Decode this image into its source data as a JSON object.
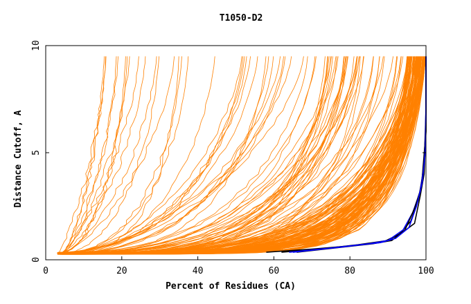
{
  "chart_data": {
    "type": "line",
    "title": "T1050-D2",
    "xlabel": "Percent of Residues (CA)",
    "ylabel": "Distance Cutoff, A",
    "xlim": [
      0,
      100
    ],
    "ylim": [
      0,
      10
    ],
    "xticks": [
      0,
      20,
      40,
      60,
      80,
      100
    ],
    "yticks": [
      0,
      5,
      10
    ],
    "grid": false,
    "colors": {
      "models": "#ff8000",
      "highlight_black": "#000000",
      "highlight_blue": "#0000ff"
    },
    "highlighted_series": [
      {
        "color": "#000000",
        "x": [
          58,
          70,
          80,
          89,
          93,
          96,
          98,
          99,
          100,
          100
        ],
        "y": [
          0.35,
          0.5,
          0.65,
          0.85,
          1.2,
          1.8,
          2.8,
          3.8,
          6.0,
          9.5
        ]
      },
      {
        "color": "#000000",
        "x": [
          62,
          72,
          82,
          90,
          94,
          97,
          98.5,
          99.5,
          100,
          100
        ],
        "y": [
          0.35,
          0.5,
          0.7,
          0.9,
          1.3,
          1.7,
          3.0,
          4.0,
          6.0,
          9.5
        ]
      },
      {
        "color": "#0000ff",
        "x": [
          64,
          75,
          85,
          90,
          94,
          96.5,
          98.5,
          99.5,
          100,
          100
        ],
        "y": [
          0.35,
          0.55,
          0.75,
          0.9,
          1.4,
          2.2,
          3.2,
          4.5,
          6.5,
          9.5
        ]
      },
      {
        "color": "#000000",
        "x": [
          66,
          76,
          86,
          91,
          94.5,
          97,
          98.8,
          99.6,
          100,
          100
        ],
        "y": [
          0.35,
          0.55,
          0.75,
          0.9,
          1.4,
          2.4,
          3.4,
          4.8,
          7.0,
          9.5
        ]
      },
      {
        "color": "#0000ff",
        "x": [
          65,
          78,
          88,
          92,
          95.5,
          97.5,
          99,
          99.8,
          100,
          100
        ],
        "y": [
          0.35,
          0.6,
          0.8,
          1.0,
          1.5,
          2.5,
          3.6,
          5.0,
          7.5,
          9.5
        ]
      }
    ],
    "model_series_families": [
      {
        "x_at_y_max_range": [
          15,
          30
        ],
        "count": 12,
        "description_shape": "steep"
      },
      {
        "x_at_y_max_range": [
          30,
          70
        ],
        "count": 20,
        "description_shape": "moderate"
      },
      {
        "x_at_y_max_range": [
          70,
          95
        ],
        "count": 40,
        "description_shape": "gradual"
      },
      {
        "x_at_y_max_range": [
          95,
          100
        ],
        "count": 120,
        "description_shape": "dense-near-100"
      }
    ]
  }
}
